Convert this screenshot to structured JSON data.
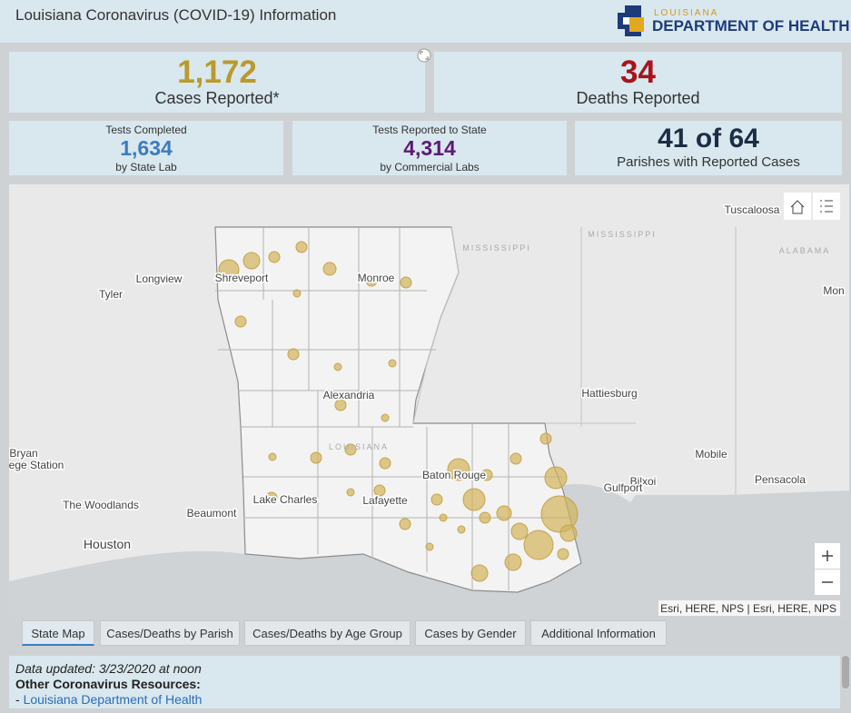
{
  "header": {
    "title": "Louisiana Coronavirus (COVID-19) Information",
    "logo_top": "LOUISIANA",
    "logo_bottom": "DEPARTMENT OF HEALTH"
  },
  "stats": {
    "cases": {
      "value": "1,172",
      "label": "Cases Reported*"
    },
    "deaths": {
      "value": "34",
      "label": "Deaths Reported"
    },
    "tests_state": {
      "caption": "Tests Completed",
      "value": "1,634",
      "sub": "by State Lab"
    },
    "tests_commercial": {
      "caption": "Tests Reported to State",
      "value": "4,314",
      "sub": "by Commercial Labs"
    },
    "parishes": {
      "value": "41 of 64",
      "label": "Parishes with Reported Cases"
    }
  },
  "map": {
    "labels": [
      "Shreveport",
      "Monroe",
      "Longview",
      "Tyler",
      "Alexandria",
      "Hattiesburg",
      "Bryan",
      "ege Station",
      "Mobile",
      "Pensacola",
      "Baton Rouge",
      "Bilxoi",
      "Gulfport",
      "The Woodlands",
      "Lake Charles",
      "Lafayette",
      "Beaumont",
      "Houston",
      "Tuscaloosa",
      "Mon"
    ],
    "regions": [
      "MISSISSIPPI",
      "MISSISSIPPI",
      "ALABAMA",
      "LOUISIANA"
    ],
    "attribution": "Esri, HERE, NPS | Esri, HERE, NPS"
  },
  "tabs": [
    "State Map",
    "Cases/Deaths by Parish",
    "Cases/Deaths by Age Group",
    "Cases by Gender",
    "Additional Information"
  ],
  "footer": {
    "updated": "Data updated: 3/23/2020 at noon",
    "heading": "Other Coronavirus Resources:",
    "prefix": "-",
    "link": "Louisiana Department of Health"
  }
}
